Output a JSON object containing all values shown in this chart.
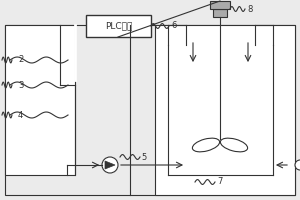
{
  "bg_color": "#ebebeb",
  "line_color": "#333333",
  "white": "#ffffff",
  "gray": "#aaaaaa",
  "plc_label": "PLC控制",
  "figsize": [
    3.0,
    2.0
  ],
  "dpi": 100
}
